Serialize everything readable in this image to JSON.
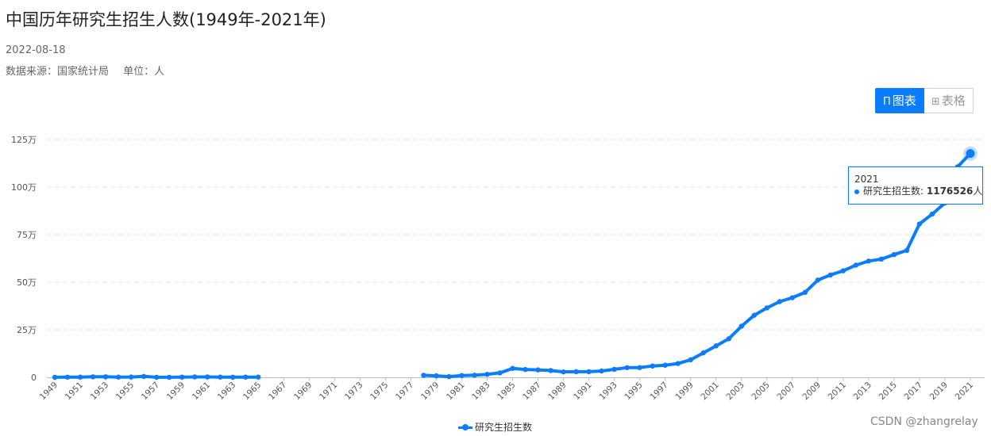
{
  "header": {
    "title": "中国历年研究生招生人数(1949年-2021年)",
    "date": "2022-08-18",
    "source": "数据来源：国家统计局",
    "unit": "单位：人"
  },
  "toggle": {
    "chart_label": "图表",
    "table_label": "表格"
  },
  "tooltip": {
    "year": "2021",
    "series": "研究生招生数:",
    "value": "1176526",
    "suffix": "人"
  },
  "legend": {
    "label": "研究生招生数"
  },
  "watermark": "CSDN @zhangrelay",
  "colors": {
    "accent": "#0a7cff",
    "grid": "#e5e5e5"
  },
  "chart_data": {
    "type": "line",
    "title": "中国历年研究生招生人数(1949年-2021年)",
    "xlabel": "",
    "ylabel": "",
    "unit": "人",
    "ylim": [
      0,
      1250000
    ],
    "y_ticks": [
      "0",
      "25万",
      "50万",
      "75万",
      "100万",
      "125万"
    ],
    "x_tick_labels": [
      "1949",
      "1951",
      "1953",
      "1955",
      "1957",
      "1959",
      "1961",
      "1963",
      "1965",
      "1967",
      "1969",
      "1971",
      "1973",
      "1975",
      "1977",
      "1979",
      "1981",
      "1983",
      "1985",
      "1987",
      "1989",
      "1991",
      "1993",
      "1995",
      "1997",
      "1999",
      "2001",
      "2003",
      "2005",
      "2007",
      "2009",
      "2011",
      "2013",
      "2015",
      "2017",
      "2019",
      "2021"
    ],
    "grid": true,
    "legend_position": "bottom",
    "series": [
      {
        "name": "研究生招生数",
        "x": [
          1949,
          1950,
          1951,
          1952,
          1953,
          1954,
          1955,
          1956,
          1957,
          1958,
          1959,
          1960,
          1961,
          1962,
          1963,
          1964,
          1965,
          1966,
          1967,
          1968,
          1969,
          1970,
          1971,
          1972,
          1973,
          1974,
          1975,
          1976,
          1977,
          1978,
          1979,
          1980,
          1981,
          1982,
          1983,
          1984,
          1985,
          1986,
          1987,
          1988,
          1989,
          1990,
          1991,
          1992,
          1993,
          1994,
          1995,
          1996,
          1997,
          1998,
          1999,
          2000,
          2001,
          2002,
          2003,
          2004,
          2005,
          2006,
          2007,
          2008,
          2009,
          2010,
          2011,
          2012,
          2013,
          2014,
          2015,
          2016,
          2017,
          2018,
          2019,
          2020,
          2021
        ],
        "values": [
          242,
          874,
          1273,
          2763,
          2887,
          1155,
          1751,
          4841,
          334,
          275,
          1345,
          2275,
          2198,
          1287,
          780,
          1240,
          1456,
          null,
          null,
          null,
          null,
          null,
          null,
          null,
          null,
          null,
          null,
          null,
          null,
          10708,
          8110,
          3616,
          9363,
          11080,
          15642,
          23181,
          46871,
          41310,
          39017,
          35645,
          28569,
          29649,
          29679,
          33439,
          42145,
          50864,
          51053,
          59398,
          63749,
          72508,
          92225,
          128484,
          165197,
          202611,
          268925,
          326286,
          364831,
          397925,
          418612,
          446422,
          510953,
          538177,
          560168,
          589673,
          611381,
          621323,
          645055,
          667064,
          806103,
          857966,
          916503,
          1106551,
          1176526
        ]
      }
    ]
  }
}
